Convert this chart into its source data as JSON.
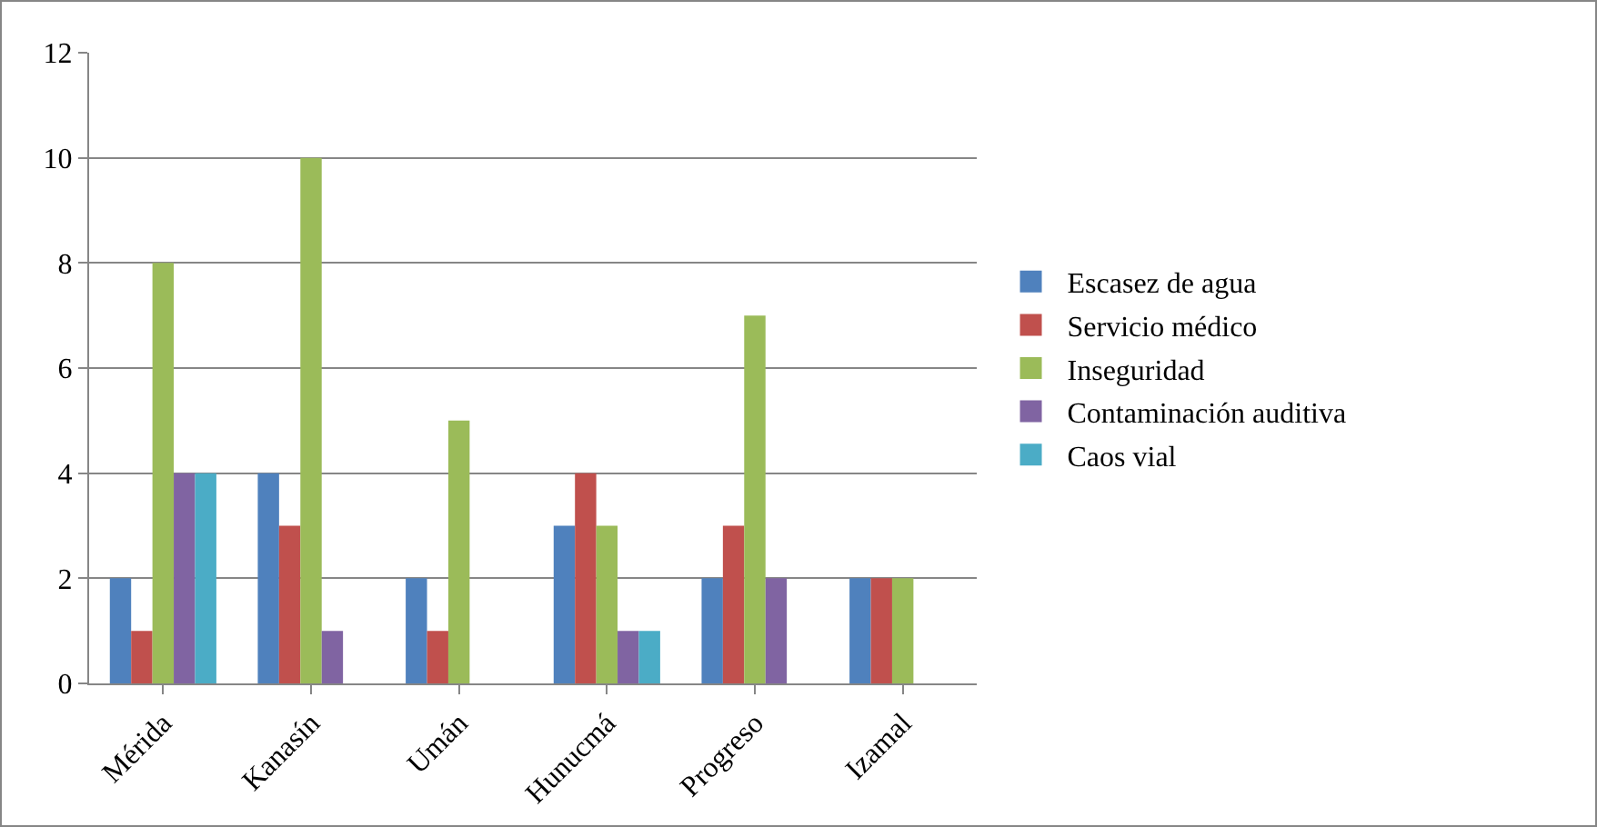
{
  "chart_data": {
    "type": "bar",
    "categories": [
      "Mérida",
      "Kanasín",
      "Umán",
      "Hunucmá",
      "Progreso",
      "Izamal"
    ],
    "series": [
      {
        "name": "Escasez de agua",
        "color": "#4f81bd",
        "values": [
          2,
          4,
          2,
          3,
          2,
          2
        ]
      },
      {
        "name": "Servicio médico",
        "color": "#c0504d",
        "values": [
          1,
          3,
          1,
          4,
          3,
          2
        ]
      },
      {
        "name": "Inseguridad",
        "color": "#9bbb59",
        "values": [
          8,
          10,
          5,
          3,
          7,
          2
        ]
      },
      {
        "name": "Contaminación auditiva",
        "color": "#8064a2",
        "values": [
          4,
          1,
          0,
          1,
          2,
          0
        ]
      },
      {
        "name": "Caos vial",
        "color": "#4bacc6",
        "values": [
          4,
          0,
          0,
          1,
          0,
          0
        ]
      }
    ],
    "ylim": [
      0,
      12
    ],
    "yticks": [
      0,
      2,
      4,
      6,
      8,
      10,
      12
    ],
    "grid": "y",
    "legend": "right"
  }
}
